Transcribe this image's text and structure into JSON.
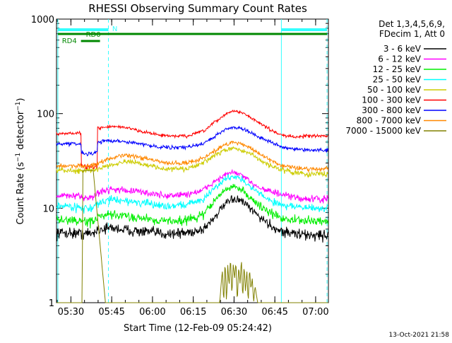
{
  "chart_data": {
    "type": "line",
    "title": "RHESSI Observing Summary Count Rates",
    "xlabel": "Start Time (12-Feb-09 05:24:42)",
    "ylabel": "Count Rate (s-1 detector-1)",
    "ylabel_parts": {
      "prefix": "Count Rate (s",
      "exp1": "−1",
      "mid": " detector",
      "exp2": "−1",
      "suffix": ")"
    },
    "yscale": "log",
    "ylim": [
      1,
      1000
    ],
    "y_tick_labels": [
      "1",
      "10",
      "100",
      "1000"
    ],
    "x_unit": "minutes after 05:24:42",
    "xlim": [
      0,
      100
    ],
    "x_tick_labels": [
      "05:30",
      "05:45",
      "06:00",
      "06:15",
      "06:30",
      "06:45",
      "07:00"
    ],
    "legend_header": [
      "Det 1,3,4,5,6,9,",
      "FDecim 1, Att 0"
    ],
    "timestamp": "13-Oct-2021 21:58",
    "annotations": {
      "night": "N",
      "rd0": "RD0",
      "rd4": "RD4"
    },
    "time_markers": {
      "solid": [
        0.5,
        82.7
      ],
      "dashed": [
        19.1,
        99.5
      ]
    },
    "flag_bars": [
      {
        "name": "N",
        "color": "#33ffff",
        "ranges": [
          [
            0.5,
            19.1
          ],
          [
            82.7,
            99.5
          ]
        ]
      },
      {
        "name": "RD0",
        "color": "#008800",
        "ranges": [
          [
            0.5,
            99.5
          ]
        ]
      },
      {
        "name": "RD4",
        "color": "#008800",
        "ranges": [
          [
            9,
            16
          ]
        ]
      }
    ],
    "series": [
      {
        "name": "3 - 6 keV",
        "color": "#000000",
        "x": [
          0,
          5,
          10,
          13.5,
          15,
          20,
          30,
          40,
          48,
          54,
          58,
          62,
          65,
          68,
          71,
          75,
          79,
          82,
          87,
          92,
          100
        ],
        "y": [
          5.5,
          5.5,
          5.4,
          5.4,
          6.0,
          6.2,
          5.7,
          5.4,
          5.5,
          6.0,
          8.0,
          11.0,
          12.5,
          12.0,
          10.0,
          8.0,
          6.5,
          5.8,
          5.4,
          5.2,
          5.2
        ]
      },
      {
        "name": "6 - 12 keV",
        "color": "#ff00ff",
        "x": [
          0,
          5,
          10,
          13.5,
          15,
          20,
          30,
          40,
          48,
          54,
          58,
          62,
          65,
          68,
          71,
          75,
          79,
          82,
          87,
          92,
          100
        ],
        "y": [
          13.5,
          13.5,
          13.0,
          13.0,
          14.5,
          16.0,
          15.0,
          13.5,
          14.0,
          15.5,
          19.0,
          22.5,
          24.0,
          22.5,
          19.0,
          16.5,
          15.0,
          14.0,
          13.0,
          12.5,
          12.5
        ]
      },
      {
        "name": "12 - 25 keV",
        "color": "#00ee00",
        "x": [
          0,
          5,
          10,
          13.5,
          15,
          20,
          30,
          40,
          48,
          54,
          58,
          62,
          65,
          68,
          71,
          75,
          79,
          82,
          87,
          92,
          100
        ],
        "y": [
          7.5,
          7.5,
          7.2,
          7.2,
          8.0,
          8.5,
          8.0,
          7.3,
          7.5,
          8.5,
          12.0,
          15.5,
          17.0,
          16.0,
          13.0,
          10.5,
          8.8,
          8.0,
          7.5,
          7.3,
          7.3
        ]
      },
      {
        "name": "25 - 50 keV",
        "color": "#00ffff",
        "x": [
          0,
          5,
          10,
          13.5,
          15,
          20,
          30,
          40,
          48,
          54,
          58,
          62,
          65,
          68,
          71,
          75,
          79,
          82,
          87,
          92,
          100
        ],
        "y": [
          10.5,
          10.5,
          10.0,
          10.0,
          11.0,
          12.5,
          11.5,
          10.5,
          11.0,
          12.5,
          16.0,
          20.5,
          22.0,
          20.5,
          17.0,
          14.0,
          12.0,
          11.0,
          10.5,
          10.0,
          10.0
        ]
      },
      {
        "name": "50 - 100 keV",
        "color": "#cccc00",
        "x": [
          0,
          5,
          10,
          13.5,
          15,
          20,
          25,
          30,
          40,
          48,
          54,
          58,
          62,
          65,
          68,
          71,
          75,
          79,
          82,
          87,
          92,
          100
        ],
        "y": [
          25,
          25,
          25,
          25,
          26,
          29,
          31,
          30,
          26,
          26,
          30,
          36,
          41,
          43,
          41,
          38,
          32,
          28,
          26,
          24,
          23,
          23
        ]
      },
      {
        "name": "100 - 300 keV",
        "color": "#ff0000",
        "x": [
          0,
          5,
          9,
          9.1,
          13.5,
          15,
          15.1,
          20,
          25,
          30,
          40,
          48,
          54,
          58,
          62,
          65,
          68,
          71,
          75,
          79,
          82,
          87,
          92,
          100
        ],
        "y": [
          62,
          62,
          62,
          28,
          27,
          28,
          70,
          73,
          72,
          66,
          58,
          58,
          65,
          80,
          98,
          107,
          103,
          93,
          78,
          67,
          60,
          57,
          58,
          58
        ]
      },
      {
        "name": "300 - 800 keV",
        "color": "#0000ff",
        "x": [
          0,
          5,
          9,
          9.1,
          13.5,
          15,
          15.1,
          20,
          25,
          30,
          40,
          48,
          54,
          58,
          62,
          65,
          68,
          71,
          75,
          79,
          82,
          87,
          92,
          100
        ],
        "y": [
          48,
          48,
          48,
          38,
          38,
          39,
          50,
          52,
          51,
          48,
          44,
          44,
          48,
          57,
          68,
          72,
          70,
          64,
          56,
          50,
          45,
          42,
          41,
          41
        ]
      },
      {
        "name": "800 - 7000 keV",
        "color": "#ff8800",
        "x": [
          0,
          5,
          10,
          13.5,
          15,
          20,
          25,
          30,
          40,
          48,
          54,
          58,
          62,
          65,
          68,
          71,
          75,
          79,
          82,
          87,
          92,
          100
        ],
        "y": [
          28,
          28,
          28,
          28,
          30,
          34,
          36,
          35,
          30,
          30,
          34,
          40,
          47,
          50,
          48,
          44,
          37,
          32,
          29,
          27,
          26,
          26
        ]
      },
      {
        "name": "7000 - 15000 keV",
        "color": "#808000",
        "x": [
          0,
          9.5,
          9.6,
          13.5,
          18,
          60,
          61,
          61.5,
          62,
          62.5,
          63,
          63.5,
          64,
          64.5,
          65,
          65.5,
          66,
          66.5,
          67,
          67.5,
          68,
          68.5,
          69,
          69.5,
          70,
          70.5,
          71,
          71.5,
          72,
          72.5,
          73,
          74,
          100
        ],
        "y": [
          1.0,
          1.0,
          25,
          25,
          1.0,
          1.0,
          2.2,
          1.0,
          2.8,
          1.0,
          2.5,
          1.5,
          3.0,
          1.2,
          2.6,
          1.8,
          2.7,
          1.0,
          2.4,
          1.6,
          2.9,
          1.1,
          2.5,
          1.3,
          2.2,
          1.0,
          2.3,
          1.4,
          1.8,
          1.0,
          1.5,
          1.0,
          1.0
        ]
      }
    ]
  }
}
